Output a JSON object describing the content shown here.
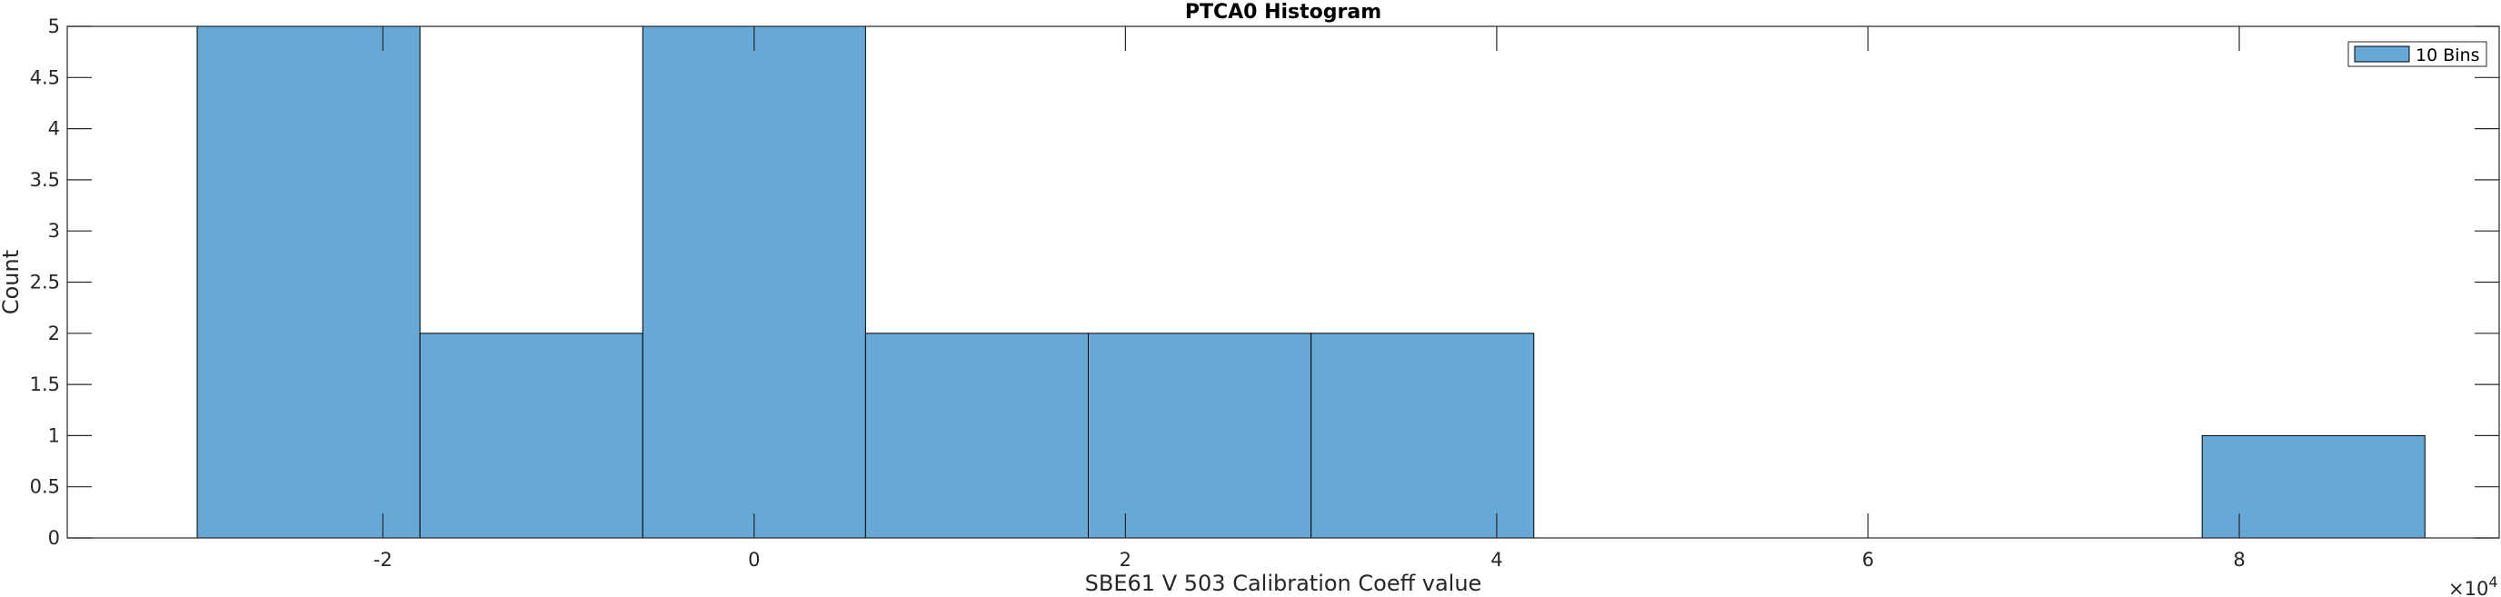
{
  "chart_data": {
    "type": "bar",
    "title": "PTCA0 Histogram",
    "xlabel": "SBE61 V 503 Calibration Coeff value",
    "ylabel": "Count",
    "x_exponent_base": "×10",
    "x_exponent_power": "4",
    "xlim": [
      -3.7,
      9.4
    ],
    "ylim": [
      0,
      5
    ],
    "x_ticks": [
      -2,
      0,
      2,
      4,
      6,
      8
    ],
    "x_tick_labels": [
      "-2",
      "0",
      "2",
      "4",
      "6",
      "8"
    ],
    "y_ticks": [
      0,
      0.5,
      1,
      1.5,
      2,
      2.5,
      3,
      3.5,
      4,
      4.5,
      5
    ],
    "y_tick_labels": [
      "0",
      "0.5",
      "1",
      "1.5",
      "2",
      "2.5",
      "3",
      "3.5",
      "4",
      "4.5",
      "5"
    ],
    "bin_edges": [
      -3.0,
      -1.8,
      -0.6,
      0.6,
      1.8,
      3.0,
      4.2,
      5.4,
      6.6,
      7.8,
      9.0
    ],
    "values": [
      5,
      2,
      5,
      2,
      2,
      2,
      0,
      0,
      0,
      1
    ],
    "series": [
      {
        "name": "10 Bins",
        "values": [
          5,
          2,
          5,
          2,
          2,
          2,
          0,
          0,
          0,
          1
        ]
      }
    ],
    "bar_color": "#66a9d6",
    "edge_color": "#000000",
    "grid": false,
    "legend_position": "top-right"
  }
}
